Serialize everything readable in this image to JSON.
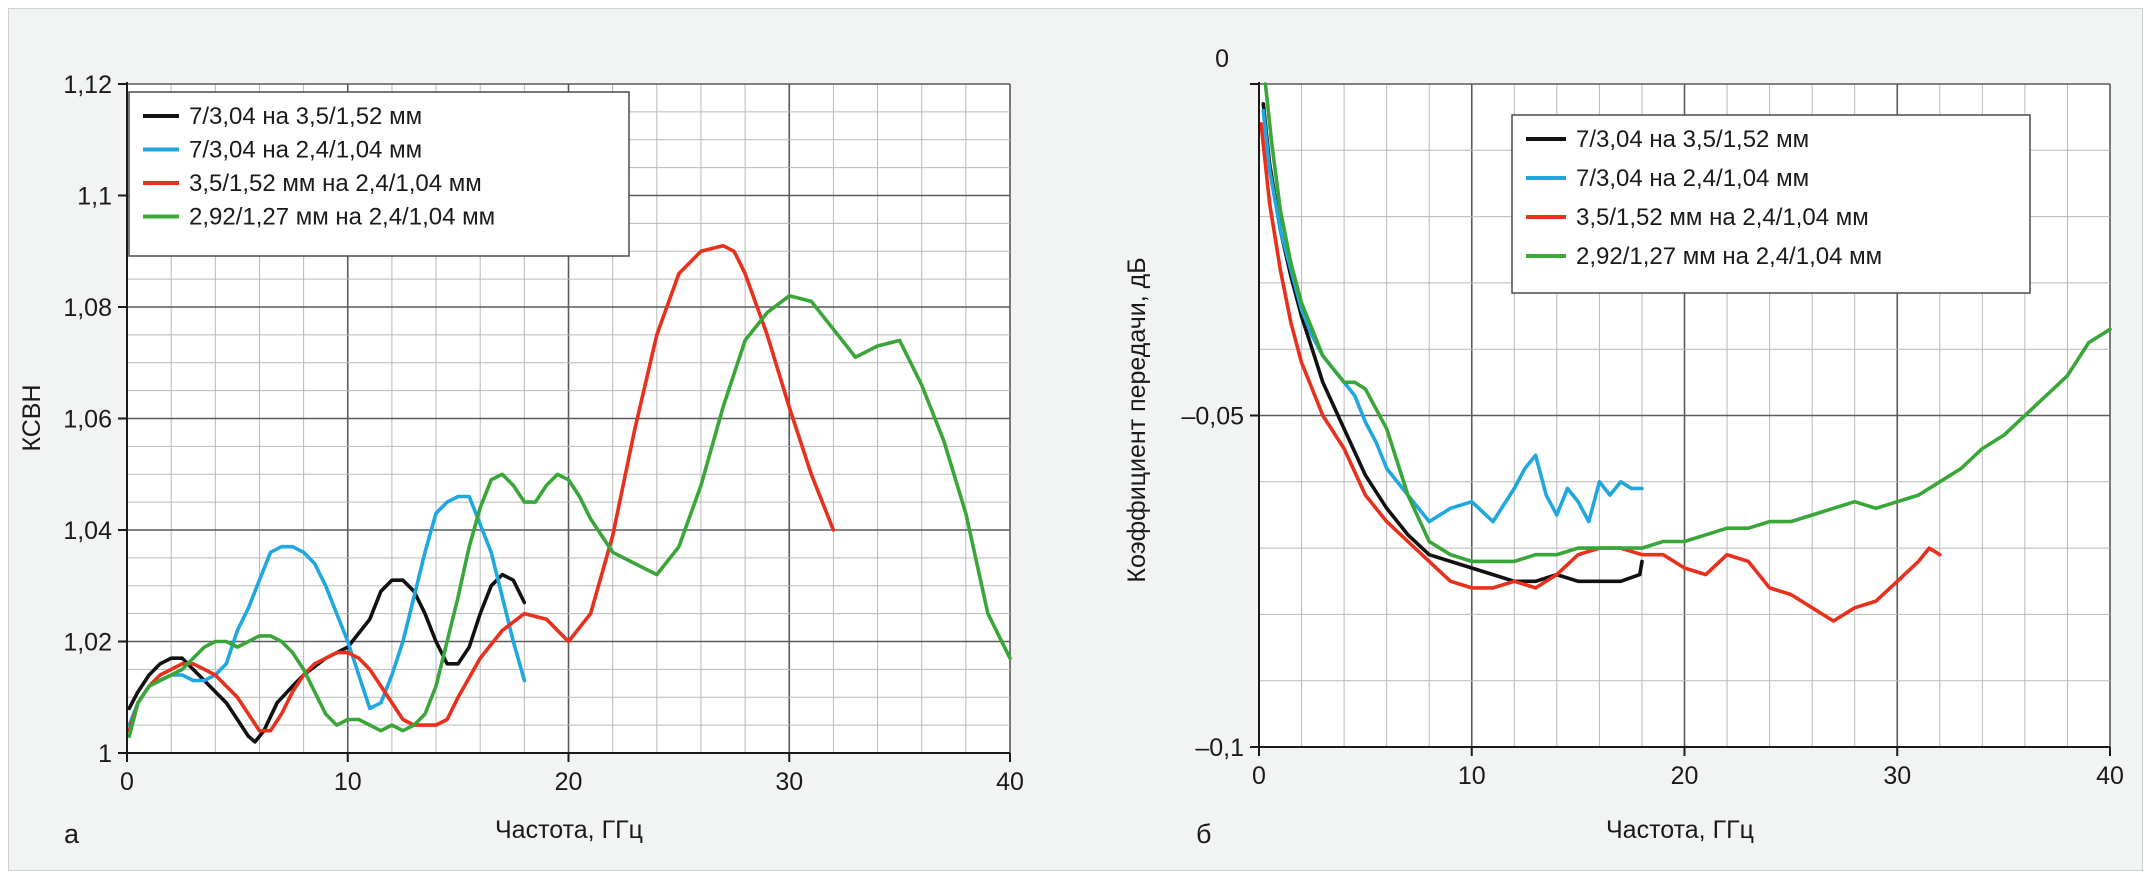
{
  "chart_data": [
    {
      "panel_label": "а",
      "type": "line",
      "xlabel": "Частота, ГГц",
      "ylabel": "КСВН",
      "xlim": [
        0,
        40
      ],
      "ylim": [
        1.0,
        1.12
      ],
      "xticks": [
        0,
        10,
        20,
        30,
        40
      ],
      "xtick_labels": [
        "0",
        "10",
        "20",
        "30",
        "40"
      ],
      "yticks": [
        1.0,
        1.02,
        1.04,
        1.06,
        1.08,
        1.1,
        1.12
      ],
      "ytick_labels": [
        "1",
        "1,02",
        "1,04",
        "1,06",
        "1,08",
        "1,1",
        "1,12"
      ],
      "grid": true,
      "legend_position": "top-left",
      "series": [
        {
          "name": "7/3,04 на 3,5/1,52 мм",
          "color": "#111111",
          "x": [
            0.1,
            0.5,
            1,
            1.5,
            2,
            2.5,
            3,
            3.5,
            4,
            4.5,
            5,
            5.5,
            5.8,
            6.2,
            6.8,
            7.5,
            8,
            9,
            10,
            11,
            11.5,
            12,
            12.5,
            13,
            13.5,
            14,
            14.5,
            15,
            15.5,
            16,
            16.5,
            17,
            17.5,
            18
          ],
          "y": [
            1.008,
            1.011,
            1.014,
            1.016,
            1.017,
            1.017,
            1.015,
            1.013,
            1.011,
            1.009,
            1.006,
            1.003,
            1.002,
            1.004,
            1.009,
            1.012,
            1.014,
            1.017,
            1.019,
            1.024,
            1.029,
            1.031,
            1.031,
            1.029,
            1.025,
            1.02,
            1.016,
            1.016,
            1.019,
            1.025,
            1.03,
            1.032,
            1.031,
            1.027
          ]
        },
        {
          "name": "7/3,04 на 2,4/1,04 мм",
          "color": "#1fa7e1",
          "x": [
            0.1,
            0.5,
            1,
            1.5,
            2,
            2.5,
            3,
            3.5,
            4,
            4.5,
            5,
            5.5,
            6,
            6.5,
            7,
            7.5,
            8,
            8.5,
            9,
            9.5,
            10,
            10.5,
            11,
            11.5,
            12,
            12.5,
            13,
            13.5,
            14,
            14.5,
            15,
            15.5,
            16,
            16.5,
            17,
            17.5,
            18
          ],
          "y": [
            1.005,
            1.009,
            1.012,
            1.013,
            1.014,
            1.014,
            1.013,
            1.013,
            1.014,
            1.016,
            1.022,
            1.026,
            1.031,
            1.036,
            1.037,
            1.037,
            1.036,
            1.034,
            1.03,
            1.025,
            1.02,
            1.014,
            1.008,
            1.009,
            1.014,
            1.02,
            1.028,
            1.036,
            1.043,
            1.045,
            1.046,
            1.046,
            1.041,
            1.036,
            1.028,
            1.02,
            1.013
          ]
        },
        {
          "name": "3,5/1,52 мм на 2,4/1,04 мм",
          "color": "#e8301c",
          "x": [
            0.1,
            0.5,
            1,
            1.5,
            2,
            2.5,
            3,
            3.5,
            4,
            4.5,
            5,
            5.5,
            6,
            6.5,
            7,
            7.5,
            8,
            8.5,
            9,
            9.5,
            10,
            10.5,
            11,
            11.5,
            12,
            12.5,
            13,
            13.5,
            14,
            14.5,
            15,
            16,
            17,
            18,
            19,
            20,
            21,
            22,
            23,
            24,
            25,
            26,
            27,
            27.5,
            28,
            29,
            30,
            31,
            32
          ],
          "y": [
            1.004,
            1.009,
            1.012,
            1.014,
            1.015,
            1.016,
            1.016,
            1.015,
            1.014,
            1.012,
            1.01,
            1.007,
            1.004,
            1.004,
            1.007,
            1.011,
            1.014,
            1.016,
            1.017,
            1.018,
            1.018,
            1.017,
            1.015,
            1.012,
            1.009,
            1.006,
            1.005,
            1.005,
            1.005,
            1.006,
            1.01,
            1.017,
            1.022,
            1.025,
            1.024,
            1.02,
            1.025,
            1.039,
            1.058,
            1.075,
            1.086,
            1.09,
            1.091,
            1.09,
            1.086,
            1.075,
            1.062,
            1.05,
            1.04
          ]
        },
        {
          "name": "2,92/1,27 мм на 2,4/1,04 мм",
          "color": "#3aa63a",
          "x": [
            0.1,
            0.5,
            1,
            1.5,
            2,
            2.5,
            3,
            3.5,
            4,
            4.5,
            5,
            5.5,
            6,
            6.5,
            7,
            7.5,
            8,
            8.5,
            9,
            9.5,
            10,
            10.5,
            11,
            11.5,
            12,
            12.5,
            13,
            13.5,
            14,
            14.5,
            15,
            15.5,
            16,
            16.5,
            17,
            17.5,
            18,
            18.5,
            19,
            19.5,
            20,
            20.5,
            21,
            22,
            23,
            24,
            25,
            26,
            27,
            28,
            29,
            30,
            31,
            32,
            33,
            34,
            35,
            36,
            37,
            38,
            39,
            40
          ],
          "y": [
            1.003,
            1.009,
            1.012,
            1.013,
            1.014,
            1.015,
            1.017,
            1.019,
            1.02,
            1.02,
            1.019,
            1.02,
            1.021,
            1.021,
            1.02,
            1.018,
            1.015,
            1.011,
            1.007,
            1.005,
            1.006,
            1.006,
            1.005,
            1.004,
            1.005,
            1.004,
            1.005,
            1.007,
            1.012,
            1.02,
            1.028,
            1.037,
            1.044,
            1.049,
            1.05,
            1.048,
            1.045,
            1.045,
            1.048,
            1.05,
            1.049,
            1.046,
            1.042,
            1.036,
            1.034,
            1.032,
            1.037,
            1.048,
            1.062,
            1.074,
            1.079,
            1.082,
            1.081,
            1.076,
            1.071,
            1.073,
            1.074,
            1.066,
            1.056,
            1.043,
            1.025,
            1.017
          ]
        }
      ]
    },
    {
      "panel_label": "б",
      "type": "line",
      "xlabel": "Частота, ГГц",
      "ylabel": "Коэффициент передачи, дБ",
      "xlim": [
        0,
        40
      ],
      "ylim": [
        -0.1,
        0
      ],
      "xticks": [
        0,
        10,
        20,
        30,
        40
      ],
      "xtick_labels": [
        "0",
        "10",
        "20",
        "30",
        "40"
      ],
      "yticks": [
        -0.1,
        -0.05,
        0
      ],
      "ytick_labels": [
        "–0,1",
        "–0,05",
        "0"
      ],
      "grid": true,
      "legend_position": "top-right",
      "series": [
        {
          "name": "7/3,04 на 3,5/1,52 мм",
          "color": "#111111",
          "x": [
            0.2,
            0.5,
            1,
            1.5,
            2,
            2.5,
            3,
            4,
            5,
            6,
            7,
            8,
            9,
            10,
            11,
            12,
            13,
            14,
            15,
            16,
            17,
            17.9,
            18
          ],
          "y": [
            -0.003,
            -0.012,
            -0.022,
            -0.029,
            -0.035,
            -0.04,
            -0.045,
            -0.052,
            -0.059,
            -0.064,
            -0.068,
            -0.071,
            -0.072,
            -0.073,
            -0.074,
            -0.075,
            -0.075,
            -0.074,
            -0.075,
            -0.075,
            -0.075,
            -0.074,
            -0.072
          ]
        },
        {
          "name": "7/3,04 на 2,4/1,04 мм",
          "color": "#1fa7e1",
          "x": [
            0.2,
            0.5,
            1,
            1.5,
            2,
            2.5,
            3,
            3.5,
            4,
            4.5,
            5,
            5.5,
            6,
            7,
            8,
            9,
            10,
            11,
            12,
            12.5,
            13,
            13.5,
            14,
            14.5,
            15,
            15.5,
            16,
            16.5,
            17,
            17.5,
            18
          ],
          "y": [
            -0.004,
            -0.013,
            -0.022,
            -0.028,
            -0.034,
            -0.038,
            -0.041,
            -0.043,
            -0.045,
            -0.047,
            -0.051,
            -0.054,
            -0.058,
            -0.062,
            -0.066,
            -0.064,
            -0.063,
            -0.066,
            -0.061,
            -0.058,
            -0.056,
            -0.062,
            -0.065,
            -0.061,
            -0.063,
            -0.066,
            -0.06,
            -0.062,
            -0.06,
            -0.061,
            -0.061
          ]
        },
        {
          "name": "3,5/1,52 мм на 2,4/1,04 мм",
          "color": "#e8301c",
          "x": [
            0.1,
            0.5,
            1,
            1.5,
            2,
            2.5,
            3,
            4,
            5,
            6,
            7,
            8,
            9,
            10,
            11,
            12,
            13,
            14,
            15,
            16,
            17,
            18,
            19,
            20,
            21,
            22,
            23,
            24,
            25,
            26,
            27,
            28,
            29,
            30,
            31,
            31.5,
            32
          ],
          "y": [
            -0.006,
            -0.018,
            -0.028,
            -0.036,
            -0.042,
            -0.046,
            -0.05,
            -0.055,
            -0.062,
            -0.066,
            -0.069,
            -0.072,
            -0.075,
            -0.076,
            -0.076,
            -0.075,
            -0.076,
            -0.074,
            -0.071,
            -0.07,
            -0.07,
            -0.071,
            -0.071,
            -0.073,
            -0.074,
            -0.071,
            -0.072,
            -0.076,
            -0.077,
            -0.079,
            -0.081,
            -0.079,
            -0.078,
            -0.075,
            -0.072,
            -0.07,
            -0.071
          ]
        },
        {
          "name": "2,92/1,27 мм на 2,4/1,04 мм",
          "color": "#3aa63a",
          "x": [
            0.3,
            0.6,
            1,
            1.5,
            2,
            2.5,
            3,
            3.5,
            4,
            4.5,
            5,
            6,
            7,
            8,
            9,
            10,
            11,
            12,
            13,
            14,
            15,
            16,
            17,
            18,
            19,
            20,
            21,
            22,
            23,
            24,
            25,
            26,
            27,
            28,
            29,
            30,
            31,
            32,
            33,
            34,
            35,
            36,
            37,
            38,
            39,
            40
          ],
          "y": [
            0.0,
            -0.009,
            -0.019,
            -0.027,
            -0.033,
            -0.037,
            -0.041,
            -0.043,
            -0.045,
            -0.045,
            -0.046,
            -0.052,
            -0.062,
            -0.069,
            -0.071,
            -0.072,
            -0.072,
            -0.072,
            -0.071,
            -0.071,
            -0.07,
            -0.07,
            -0.07,
            -0.07,
            -0.069,
            -0.069,
            -0.068,
            -0.067,
            -0.067,
            -0.066,
            -0.066,
            -0.065,
            -0.064,
            -0.063,
            -0.064,
            -0.063,
            -0.062,
            -0.06,
            -0.058,
            -0.055,
            -0.053,
            -0.05,
            -0.047,
            -0.044,
            -0.039,
            -0.037
          ]
        }
      ]
    }
  ]
}
